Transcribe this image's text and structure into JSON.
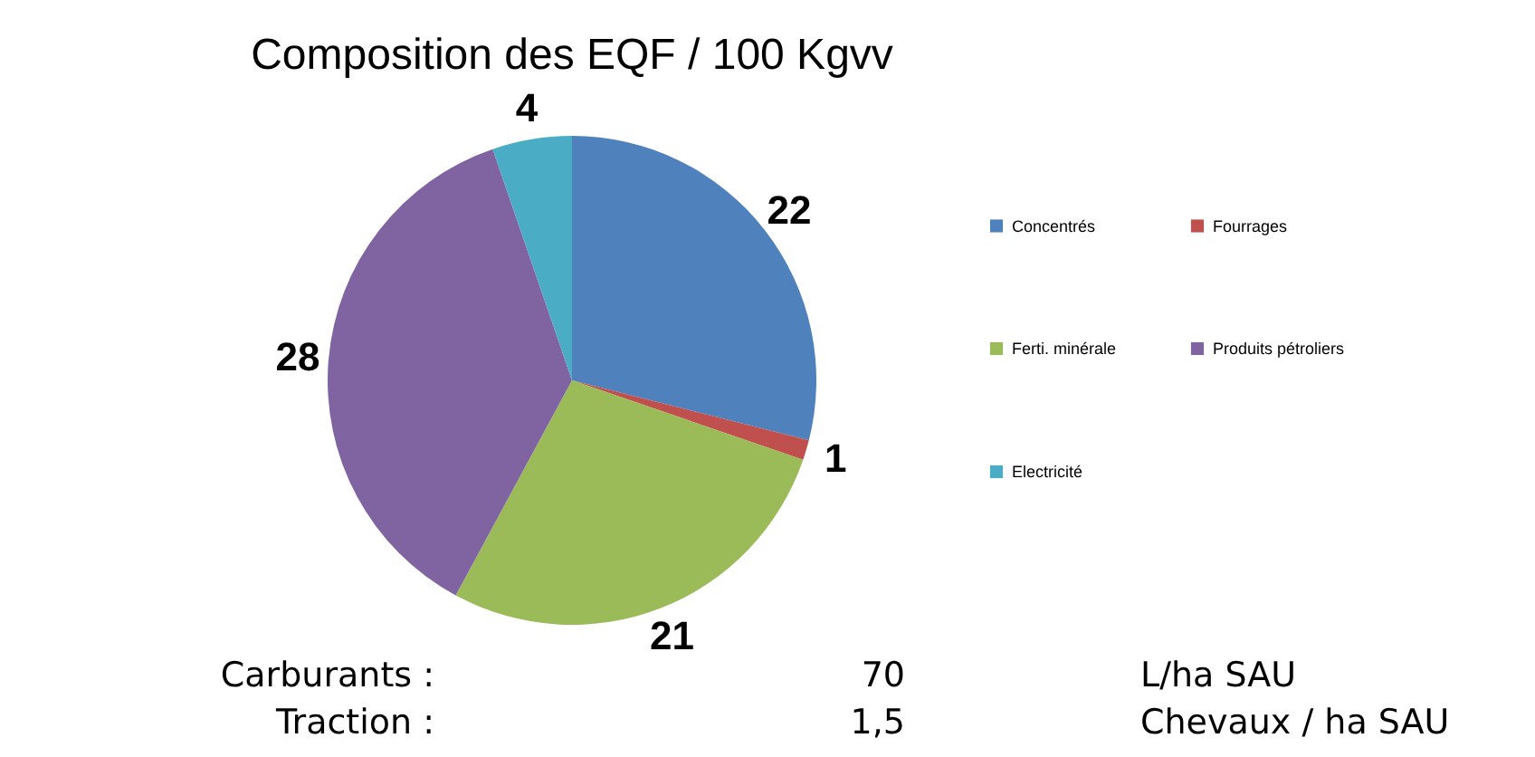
{
  "chart_data": {
    "type": "pie",
    "title": "Composition des EQF / 100 Kgvv",
    "categories": [
      "Concentrés",
      "Fourrages",
      "Ferti. minérale",
      "Produits pétroliers",
      "Electricité"
    ],
    "values": [
      22,
      1,
      21,
      28,
      4
    ],
    "colors": [
      "#4f81bd",
      "#c0504d",
      "#9bbb59",
      "#8064a2",
      "#4bacc6"
    ],
    "data_labels": true,
    "legend": "right",
    "annotations": [
      "Carburants :",
      "70",
      "L/ha SAU",
      "Traction :",
      "1,5",
      "Chevaux / ha SAU"
    ]
  }
}
